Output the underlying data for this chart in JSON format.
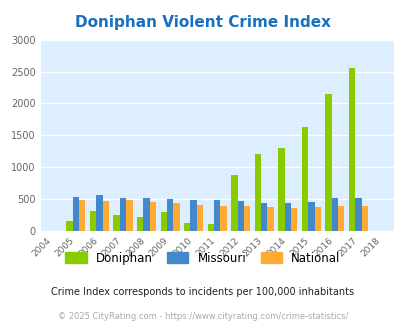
{
  "title": "Doniphan Violent Crime Index",
  "years": [
    2004,
    2005,
    2006,
    2007,
    2008,
    2009,
    2010,
    2011,
    2012,
    2013,
    2014,
    2015,
    2016,
    2017,
    2018
  ],
  "doniphan": [
    0,
    160,
    310,
    250,
    220,
    300,
    130,
    110,
    880,
    1200,
    1300,
    1630,
    2140,
    2560,
    0
  ],
  "missouri": [
    0,
    530,
    560,
    510,
    510,
    500,
    490,
    480,
    470,
    440,
    440,
    460,
    510,
    520,
    0
  ],
  "national": [
    0,
    490,
    470,
    480,
    460,
    440,
    410,
    390,
    390,
    370,
    360,
    370,
    390,
    390,
    0
  ],
  "doniphan_color": "#88cc00",
  "missouri_color": "#4488cc",
  "national_color": "#ffaa33",
  "bg_color": "#ddeeff",
  "ylim": [
    0,
    3000
  ],
  "yticks": [
    0,
    500,
    1000,
    1500,
    2000,
    2500,
    3000
  ],
  "subtitle": "Crime Index corresponds to incidents per 100,000 inhabitants",
  "footer": "© 2025 CityRating.com - https://www.cityrating.com/crime-statistics/",
  "title_color": "#1a6fbe",
  "subtitle_color": "#222222",
  "footer_color": "#aaaaaa"
}
